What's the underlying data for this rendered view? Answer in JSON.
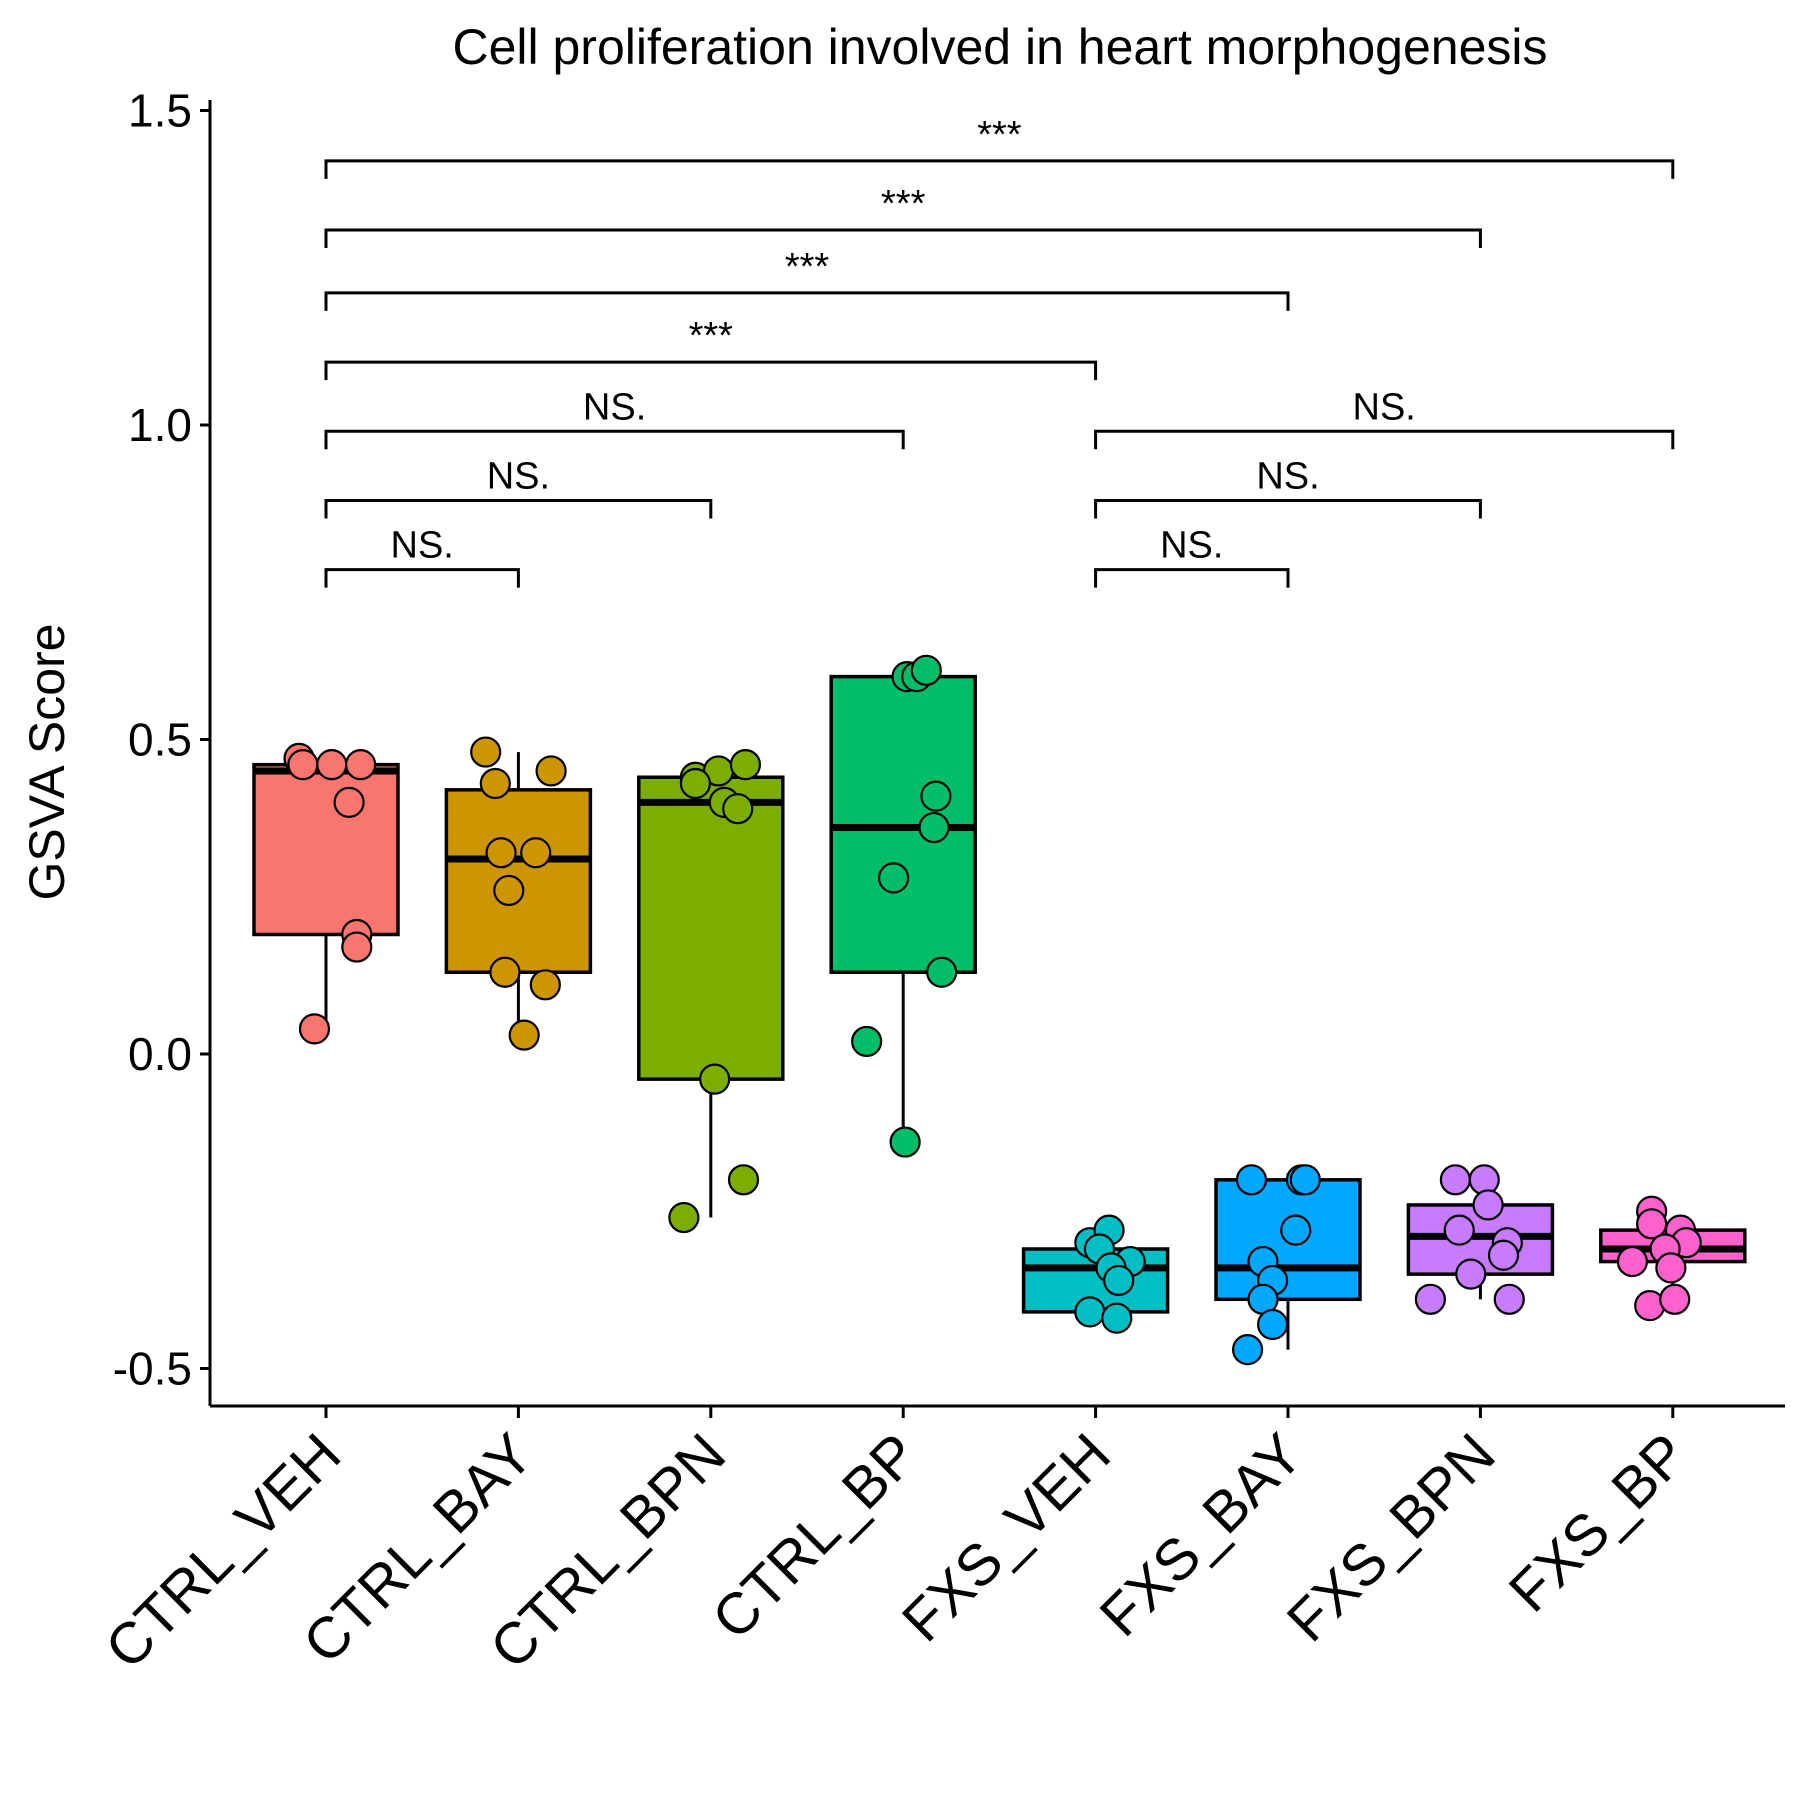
{
  "chart_data": {
    "type": "box",
    "title": "Cell proliferation involved in heart morphogenesis",
    "xlabel": "",
    "ylabel": "GSVA Score",
    "ylim": [
      -0.56,
      1.5
    ],
    "yticks": [
      1.5,
      1.0,
      0.5,
      0.0,
      -0.5
    ],
    "ytick_labels": [
      "1.5",
      "1.0",
      "0.5",
      "0.0",
      "-0.5"
    ],
    "grid": false,
    "legend": "none",
    "categories": [
      "CTRL_VEH",
      "CTRL_BAY",
      "CTRL_BPN",
      "CTRL_BP",
      "FXS_VEH",
      "FXS_BAY",
      "FXS_BPN",
      "FXS_BP"
    ],
    "colors": [
      "#F8766D",
      "#CD9600",
      "#7CAE00",
      "#00BE67",
      "#00BFC4",
      "#00A9FF",
      "#C77CFF",
      "#FF61CC"
    ],
    "boxes": [
      {
        "q1": 0.19,
        "median": 0.45,
        "q3": 0.46,
        "whisker_low": 0.04,
        "whisker_high": 0.47
      },
      {
        "q1": 0.13,
        "median": 0.31,
        "q3": 0.42,
        "whisker_low": 0.03,
        "whisker_high": 0.48
      },
      {
        "q1": -0.04,
        "median": 0.4,
        "q3": 0.44,
        "whisker_low": -0.26,
        "whisker_high": 0.45
      },
      {
        "q1": 0.13,
        "median": 0.36,
        "q3": 0.6,
        "whisker_low": -0.14,
        "whisker_high": 0.61
      },
      {
        "q1": -0.41,
        "median": -0.34,
        "q3": -0.31,
        "whisker_low": -0.42,
        "whisker_high": -0.28
      },
      {
        "q1": -0.39,
        "median": -0.34,
        "q3": -0.2,
        "whisker_low": -0.47,
        "whisker_high": -0.19
      },
      {
        "q1": -0.35,
        "median": -0.29,
        "q3": -0.24,
        "whisker_low": -0.39,
        "whisker_high": -0.19
      },
      {
        "q1": -0.33,
        "median": -0.31,
        "q3": -0.28,
        "whisker_low": -0.39,
        "whisker_high": -0.26
      }
    ],
    "points": [
      [
        [
          -0.14,
          0.47
        ],
        [
          -0.12,
          0.46
        ],
        [
          0.03,
          0.46
        ],
        [
          0.18,
          0.46
        ],
        [
          0.12,
          0.4
        ],
        [
          0.16,
          0.19
        ],
        [
          0.16,
          0.17
        ],
        [
          -0.06,
          0.04
        ]
      ],
      [
        [
          -0.17,
          0.48
        ],
        [
          -0.12,
          0.43
        ],
        [
          0.17,
          0.45
        ],
        [
          -0.09,
          0.32
        ],
        [
          0.09,
          0.32
        ],
        [
          -0.05,
          0.26
        ],
        [
          -0.07,
          0.13
        ],
        [
          0.14,
          0.11
        ],
        [
          0.03,
          0.03
        ]
      ],
      [
        [
          -0.08,
          0.44
        ],
        [
          0.04,
          0.45
        ],
        [
          0.18,
          0.46
        ],
        [
          -0.08,
          0.43
        ],
        [
          0.07,
          0.4
        ],
        [
          0.14,
          0.39
        ],
        [
          0.02,
          -0.04
        ],
        [
          0.17,
          -0.2
        ],
        [
          -0.14,
          -0.26
        ]
      ],
      [
        [
          0.02,
          0.6
        ],
        [
          0.07,
          0.6
        ],
        [
          0.12,
          0.61
        ],
        [
          0.17,
          0.41
        ],
        [
          0.16,
          0.36
        ],
        [
          -0.05,
          0.28
        ],
        [
          0.2,
          0.13
        ],
        [
          -0.19,
          0.02
        ],
        [
          0.01,
          -0.14
        ]
      ],
      [
        [
          -0.03,
          -0.3
        ],
        [
          0.07,
          -0.28
        ],
        [
          0.02,
          -0.31
        ],
        [
          0.18,
          -0.33
        ],
        [
          0.08,
          -0.34
        ],
        [
          0.12,
          -0.36
        ],
        [
          -0.03,
          -0.41
        ],
        [
          0.11,
          -0.42
        ]
      ],
      [
        [
          -0.19,
          -0.2
        ],
        [
          0.07,
          -0.2
        ],
        [
          0.09,
          -0.2
        ],
        [
          0.04,
          -0.28
        ],
        [
          -0.13,
          -0.33
        ],
        [
          -0.08,
          -0.36
        ],
        [
          -0.13,
          -0.39
        ],
        [
          -0.08,
          -0.43
        ],
        [
          -0.21,
          -0.47
        ]
      ],
      [
        [
          -0.13,
          -0.2
        ],
        [
          0.02,
          -0.2
        ],
        [
          0.04,
          -0.24
        ],
        [
          -0.11,
          -0.28
        ],
        [
          0.14,
          -0.3
        ],
        [
          0.12,
          -0.32
        ],
        [
          -0.05,
          -0.35
        ],
        [
          -0.26,
          -0.39
        ],
        [
          0.15,
          -0.39
        ]
      ],
      [
        [
          -0.11,
          -0.25
        ],
        [
          -0.11,
          -0.27
        ],
        [
          0.04,
          -0.28
        ],
        [
          0.07,
          -0.3
        ],
        [
          -0.04,
          -0.31
        ],
        [
          -0.21,
          -0.33
        ],
        [
          -0.01,
          -0.34
        ],
        [
          -0.12,
          -0.4
        ],
        [
          0.01,
          -0.39
        ]
      ]
    ],
    "comparisons": [
      {
        "from": "CTRL_VEH",
        "to": "CTRL_BAY",
        "y": 0.77,
        "label": "NS."
      },
      {
        "from": "CTRL_VEH",
        "to": "CTRL_BPN",
        "y": 0.88,
        "label": "NS."
      },
      {
        "from": "CTRL_VEH",
        "to": "CTRL_BP",
        "y": 0.99,
        "label": "NS."
      },
      {
        "from": "CTRL_VEH",
        "to": "FXS_VEH",
        "y": 1.1,
        "label": "***"
      },
      {
        "from": "CTRL_VEH",
        "to": "FXS_BAY",
        "y": 1.21,
        "label": "***"
      },
      {
        "from": "CTRL_VEH",
        "to": "FXS_BPN",
        "y": 1.31,
        "label": "***"
      },
      {
        "from": "CTRL_VEH",
        "to": "FXS_BP",
        "y": 1.42,
        "label": "***"
      },
      {
        "from": "FXS_VEH",
        "to": "FXS_BAY",
        "y": 0.77,
        "label": "NS."
      },
      {
        "from": "FXS_VEH",
        "to": "FXS_BPN",
        "y": 0.88,
        "label": "NS."
      },
      {
        "from": "FXS_VEH",
        "to": "FXS_BP",
        "y": 0.99,
        "label": "NS."
      }
    ]
  }
}
